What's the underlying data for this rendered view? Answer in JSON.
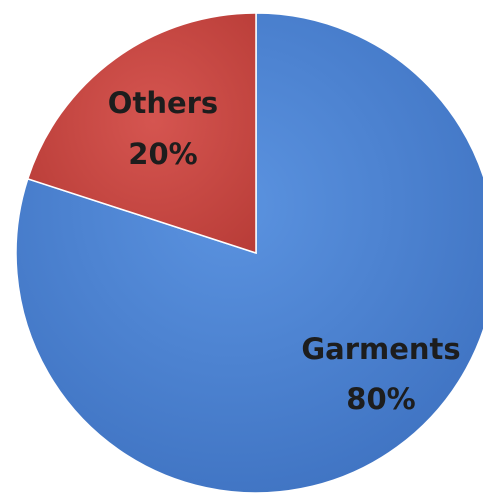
{
  "chart_data": {
    "type": "pie",
    "title": "",
    "slices": [
      {
        "label": "Garments",
        "value": 80,
        "percent_label": "80%",
        "color": "#4a7fcf"
      },
      {
        "label": "Others",
        "value": 20,
        "percent_label": "20%",
        "color": "#c94a44"
      }
    ],
    "start_angle_deg": 0,
    "direction": "clockwise",
    "legend": "none",
    "labels": "inside"
  }
}
